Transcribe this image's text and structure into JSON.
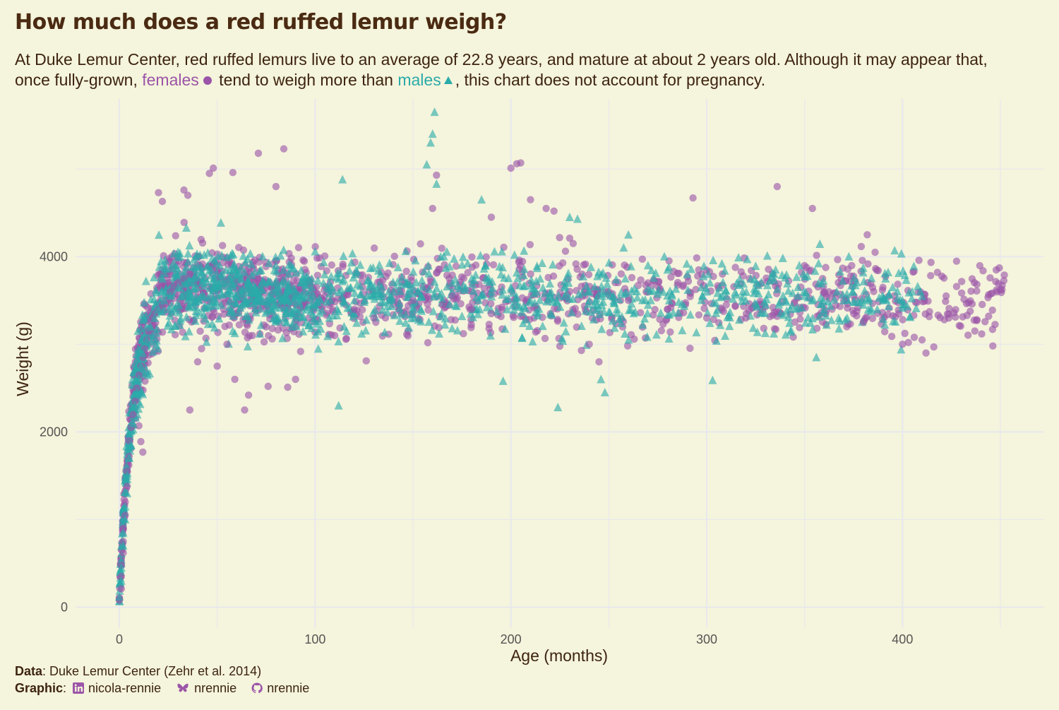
{
  "title": "How much does a red ruffed lemur weigh?",
  "subtitle": {
    "line1": "At Duke Lemur Center, red ruffed lemurs live to an average of 22.8 years, and mature at about 2 years old. Although it may appear that,",
    "part_a": "once fully-grown, ",
    "females_word": "females",
    "part_b": " tend to weigh more than ",
    "males_word": "males",
    "part_c": ", this chart does not account for pregnancy."
  },
  "caption": {
    "data_label": "Data",
    "data_text": ": Duke Lemur Center (Zehr et al. 2014)",
    "graphic_label": "Graphic",
    "linkedin": "nicola-rennie",
    "bluesky": "nrennie",
    "github": "nrennie",
    "icons": [
      "linkedin-icon",
      "bluesky-butterfly-icon",
      "github-icon"
    ]
  },
  "chart_data": {
    "type": "scatter",
    "title": "How much does a red ruffed lemur weigh?",
    "xlabel": "Age (months)",
    "ylabel": "Weight (g)",
    "xlim": [
      -22,
      472
    ],
    "ylim": [
      -230,
      5800
    ],
    "x_ticks": [
      0,
      100,
      200,
      300,
      400
    ],
    "y_ticks": [
      0,
      2000,
      4000
    ],
    "grid": true,
    "legend": "none",
    "colors": {
      "female": "#9B55A8",
      "male": "#2AABA9",
      "background": "#F5F4DC",
      "grid": "#E8E8EE",
      "text": "#3D2410"
    },
    "series": [
      {
        "marker": "circle",
        "color": "#9B55A8",
        "points": [
          [
            0,
            80
          ],
          [
            0,
            110
          ],
          [
            1,
            210
          ],
          [
            1,
            350
          ],
          [
            1,
            480
          ],
          [
            2,
            620
          ],
          [
            2,
            750
          ],
          [
            2,
            900
          ],
          [
            3,
            1050
          ],
          [
            3,
            1200
          ],
          [
            4,
            1380
          ],
          [
            4,
            1550
          ],
          [
            5,
            1720
          ],
          [
            5,
            1900
          ],
          [
            6,
            2050
          ],
          [
            7,
            2200
          ],
          [
            8,
            2350
          ],
          [
            9,
            2500
          ],
          [
            10,
            2650
          ],
          [
            11,
            2750
          ],
          [
            12,
            2850
          ],
          [
            13,
            2950
          ],
          [
            14,
            3050
          ],
          [
            15,
            3150
          ],
          [
            16,
            3250
          ],
          [
            17,
            3300
          ],
          [
            18,
            3350
          ],
          [
            20,
            3400
          ],
          [
            22,
            3450
          ],
          [
            24,
            3500
          ],
          [
            26,
            3600
          ],
          [
            28,
            3650
          ],
          [
            30,
            3700
          ],
          [
            33,
            3750
          ],
          [
            36,
            3800
          ],
          [
            10,
            2070
          ],
          [
            11,
            1890
          ],
          [
            12,
            1770
          ],
          [
            20,
            4730
          ],
          [
            22,
            4630
          ],
          [
            33,
            4760
          ],
          [
            35,
            4700
          ],
          [
            46,
            4950
          ],
          [
            48,
            5010
          ],
          [
            58,
            4960
          ],
          [
            71,
            5180
          ],
          [
            84,
            5230
          ],
          [
            80,
            4800
          ],
          [
            64,
            2250
          ],
          [
            59,
            2600
          ],
          [
            66,
            2420
          ],
          [
            76,
            2520
          ],
          [
            86,
            2510
          ],
          [
            36,
            2250
          ],
          [
            40,
            2800
          ],
          [
            42,
            2950
          ],
          [
            50,
            2750
          ],
          [
            55,
            3000
          ],
          [
            68,
            3100
          ],
          [
            75,
            3200
          ],
          [
            90,
            2600
          ],
          [
            110,
            3100
          ],
          [
            120,
            3400
          ],
          [
            130,
            3300
          ],
          [
            140,
            3600
          ],
          [
            150,
            3500
          ],
          [
            165,
            3450
          ],
          [
            170,
            3550
          ],
          [
            180,
            3400
          ],
          [
            190,
            3350
          ],
          [
            200,
            5010
          ],
          [
            203,
            5060
          ],
          [
            205,
            5070
          ],
          [
            162,
            4930
          ],
          [
            160,
            4550
          ],
          [
            190,
            4450
          ],
          [
            210,
            4650
          ],
          [
            218,
            4550
          ],
          [
            222,
            4520
          ],
          [
            230,
            4210
          ],
          [
            240,
            3000
          ],
          [
            236,
            2930
          ],
          [
            245,
            2800
          ],
          [
            250,
            3600
          ],
          [
            260,
            3500
          ],
          [
            270,
            3700
          ],
          [
            280,
            3400
          ],
          [
            293,
            4670
          ],
          [
            300,
            3300
          ],
          [
            310,
            3450
          ],
          [
            320,
            3300
          ],
          [
            336,
            4800
          ],
          [
            354,
            4550
          ],
          [
            360,
            3600
          ],
          [
            370,
            3500
          ],
          [
            380,
            3250
          ],
          [
            382,
            4250
          ],
          [
            386,
            4050
          ],
          [
            390,
            3650
          ],
          [
            400,
            3000
          ],
          [
            403,
            3020
          ],
          [
            406,
            3080
          ],
          [
            410,
            3050
          ],
          [
            412,
            2900
          ],
          [
            416,
            2970
          ],
          [
            422,
            3490
          ],
          [
            427,
            3310
          ],
          [
            433,
            3330
          ],
          [
            438,
            3280
          ],
          [
            444,
            3320
          ],
          [
            446,
            3170
          ],
          [
            450,
            3620
          ],
          [
            452,
            3790
          ]
        ]
      },
      {
        "marker": "triangle",
        "color": "#2AABA9",
        "points": [
          [
            0,
            120
          ],
          [
            1,
            300
          ],
          [
            1,
            450
          ],
          [
            2,
            700
          ],
          [
            2,
            850
          ],
          [
            3,
            1000
          ],
          [
            3,
            1150
          ],
          [
            4,
            1300
          ],
          [
            4,
            1500
          ],
          [
            5,
            1700
          ],
          [
            6,
            1850
          ],
          [
            7,
            2100
          ],
          [
            8,
            2300
          ],
          [
            9,
            2450
          ],
          [
            10,
            2600
          ],
          [
            11,
            2750
          ],
          [
            12,
            2900
          ],
          [
            14,
            3050
          ],
          [
            16,
            3200
          ],
          [
            18,
            3300
          ],
          [
            20,
            3400
          ],
          [
            23,
            3500
          ],
          [
            26,
            3550
          ],
          [
            30,
            3650
          ],
          [
            34,
            3700
          ],
          [
            38,
            3750
          ],
          [
            42,
            3700
          ],
          [
            48,
            3650
          ],
          [
            55,
            3600
          ],
          [
            60,
            3550
          ],
          [
            70,
            3500
          ],
          [
            80,
            3450
          ],
          [
            90,
            3400
          ],
          [
            100,
            3450
          ],
          [
            112,
            2300
          ],
          [
            114,
            4880
          ],
          [
            120,
            3500
          ],
          [
            130,
            3550
          ],
          [
            140,
            3600
          ],
          [
            150,
            3650
          ],
          [
            157,
            5050
          ],
          [
            160,
            5400
          ],
          [
            161,
            5650
          ],
          [
            159,
            5300
          ],
          [
            162,
            4830
          ],
          [
            170,
            3700
          ],
          [
            180,
            3750
          ],
          [
            185,
            4650
          ],
          [
            190,
            3600
          ],
          [
            196,
            2580
          ],
          [
            200,
            3650
          ],
          [
            210,
            3500
          ],
          [
            220,
            3550
          ],
          [
            224,
            2280
          ],
          [
            230,
            4450
          ],
          [
            234,
            4430
          ],
          [
            240,
            3500
          ],
          [
            246,
            2600
          ],
          [
            248,
            2450
          ],
          [
            250,
            3600
          ],
          [
            260,
            4250
          ],
          [
            270,
            3900
          ],
          [
            280,
            3850
          ],
          [
            290,
            3800
          ],
          [
            300,
            3600
          ],
          [
            303,
            2590
          ],
          [
            310,
            3550
          ],
          [
            320,
            3500
          ],
          [
            330,
            3450
          ],
          [
            340,
            3500
          ],
          [
            350,
            3550
          ],
          [
            356,
            2850
          ],
          [
            360,
            3400
          ],
          [
            370,
            3500
          ],
          [
            380,
            3450
          ],
          [
            390,
            3500
          ],
          [
            396,
            4070
          ],
          [
            400,
            3500
          ],
          [
            405,
            3600
          ],
          [
            410,
            3550
          ]
        ]
      }
    ]
  }
}
